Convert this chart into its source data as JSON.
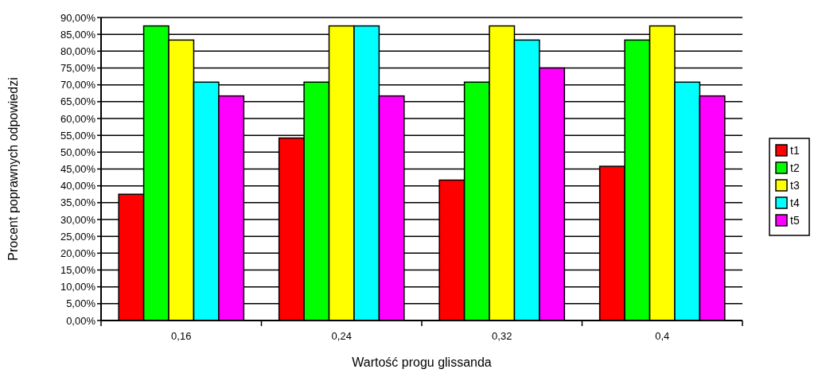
{
  "chart_data": {
    "type": "bar",
    "xlabel": "Wartość progu glissanda",
    "ylabel": "Procent poprawnych odpowiedzi",
    "categories": [
      "0,16",
      "0,24",
      "0,32",
      "0,4"
    ],
    "series": [
      {
        "name": "t1",
        "color": "#ff0000",
        "values": [
          37.5,
          54.2,
          41.7,
          45.8
        ]
      },
      {
        "name": "t2",
        "color": "#00ff00",
        "values": [
          87.5,
          70.8,
          70.8,
          83.3
        ]
      },
      {
        "name": "t3",
        "color": "#ffff00",
        "values": [
          83.3,
          87.5,
          87.5,
          87.5
        ]
      },
      {
        "name": "t4",
        "color": "#00ffff",
        "values": [
          70.8,
          87.5,
          83.3,
          70.8
        ]
      },
      {
        "name": "t5",
        "color": "#ff00ff",
        "values": [
          66.7,
          66.7,
          75,
          66.7
        ]
      }
    ],
    "ylim": [
      0,
      90
    ],
    "yticks": [
      {
        "value": 0,
        "label": "0,00%"
      },
      {
        "value": 5,
        "label": "5,00%"
      },
      {
        "value": 10,
        "label": "10,00%"
      },
      {
        "value": 15,
        "label": "15,00%"
      },
      {
        "value": 20,
        "label": "20,00%"
      },
      {
        "value": 25,
        "label": "25,00%"
      },
      {
        "value": 30,
        "label": "30,00%"
      },
      {
        "value": 35,
        "label": "35,00%"
      },
      {
        "value": 40,
        "label": "40,00%"
      },
      {
        "value": 45,
        "label": "45,00%"
      },
      {
        "value": 50,
        "label": "50,00%"
      },
      {
        "value": 55,
        "label": "55,00%"
      },
      {
        "value": 60,
        "label": "60,00%"
      },
      {
        "value": 65,
        "label": "65,00%"
      },
      {
        "value": 70,
        "label": "70,00%"
      },
      {
        "value": 75,
        "label": "75,00%"
      },
      {
        "value": 80,
        "label": "80,00%"
      },
      {
        "value": 85,
        "label": "85,00%"
      },
      {
        "value": 90,
        "label": "90,00%"
      }
    ],
    "grid": "y",
    "legend": "right"
  }
}
